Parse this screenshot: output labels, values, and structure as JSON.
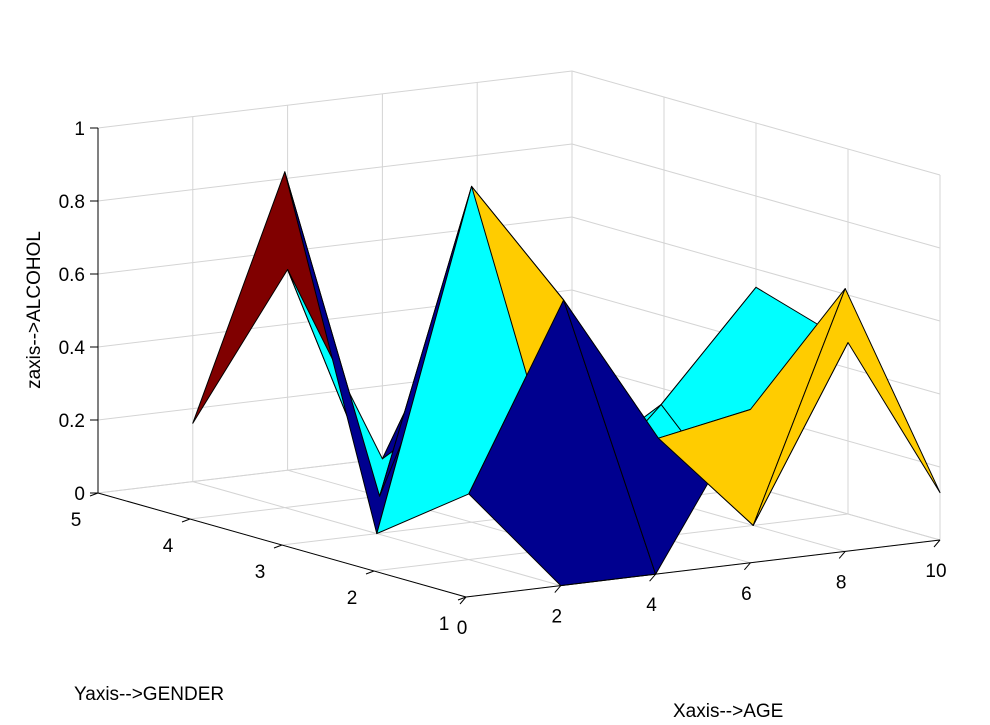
{
  "chart_data": {
    "type": "surface3d",
    "title": "",
    "xlabel": "Xaxis-->AGE",
    "ylabel": "Yaxis-->GENDER",
    "zlabel": "zaxis-->ALCOHOL",
    "xlim": [
      0,
      10
    ],
    "ylim": [
      1,
      5
    ],
    "zlim": [
      0,
      1
    ],
    "x_ticks": [
      "0",
      "2",
      "4",
      "6",
      "8",
      "10"
    ],
    "y_ticks": [
      "1",
      "2",
      "3",
      "4",
      "5"
    ],
    "z_ticks": [
      "0",
      "0.2",
      "0.4",
      "0.6",
      "0.8",
      "1"
    ],
    "grid": true,
    "legend": "none",
    "colormap_sample": [
      "#00008f",
      "#00ffff",
      "#ffcc00",
      "#800000"
    ],
    "x": [
      2,
      4,
      6,
      8,
      10
    ],
    "y": [
      1,
      2,
      3,
      4,
      5
    ],
    "z": [
      [
        0.0,
        0.0,
        0.42,
        0.72,
        0.13
      ],
      [
        0.18,
        0.68,
        0.27,
        0.0,
        0.47
      ],
      [
        0.0,
        0.92,
        0.0,
        0.26,
        0.55
      ],
      [
        0.92,
        0.0,
        0.6,
        0.0,
        0.0
      ],
      [
        0.16,
        0.55,
        0.0,
        0.16,
        0.0
      ]
    ],
    "surface_colors": [
      [
        "#00008f",
        "#00008f",
        "#ffcc00",
        "#ffcc00"
      ],
      [
        "#00ffff",
        "#ffcc00",
        "#00ffff",
        "#00ffff"
      ],
      [
        "#00008f",
        "#00008f",
        "#ffcc00",
        "#00ffff"
      ],
      [
        "#800000",
        "#00ffff",
        "#00008f",
        "#00008f"
      ]
    ]
  }
}
